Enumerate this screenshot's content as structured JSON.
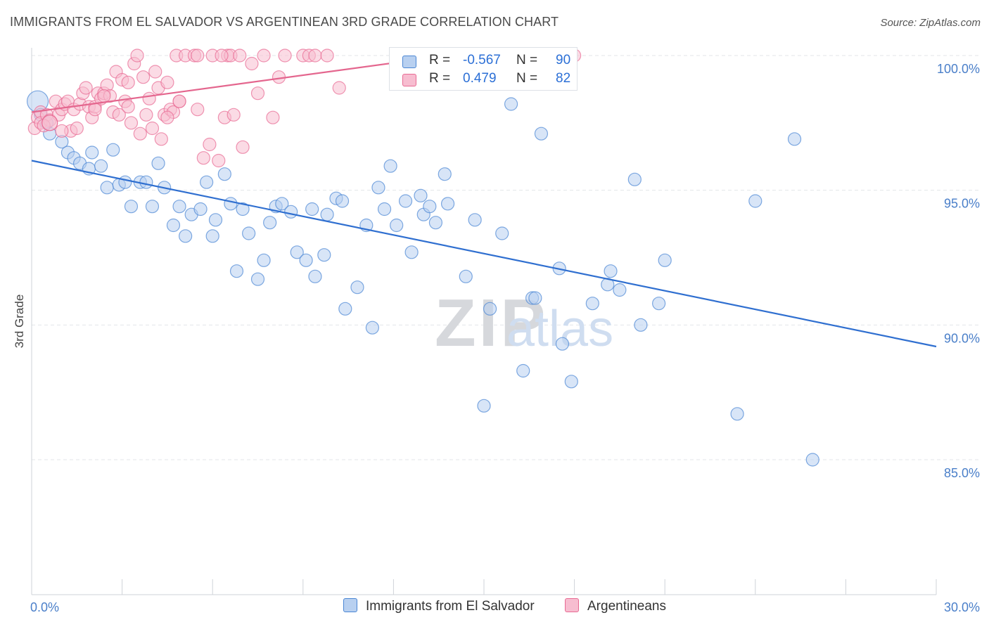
{
  "title": "IMMIGRANTS FROM EL SALVADOR VS ARGENTINEAN 3RD GRADE CORRELATION CHART",
  "source": "Source: ZipAtlas.com",
  "watermark": {
    "zip": "ZIP",
    "atlas": "atlas"
  },
  "colors": {
    "blue": "#4a86d4",
    "blue_fill": "#b8d0f0",
    "blue_line": "#2f6fd0",
    "pink": "#e86a93",
    "pink_fill": "#f7bdd0",
    "pink_line": "#e4668e",
    "tick_text": "#4a7fc9",
    "grid": "#e3e6ea"
  },
  "legend": {
    "rows": [
      {
        "r_label": "R =",
        "r_value": "-0.567",
        "n_label": "N =",
        "n_value": "90"
      },
      {
        "r_label": "R =",
        "r_value": "0.479",
        "n_label": "N =",
        "n_value": "82"
      }
    ]
  },
  "bottom_legend": [
    "Immigrants from El Salvador",
    "Argentineans"
  ],
  "chart_data": {
    "type": "scatter",
    "xlabel": "",
    "ylabel": "3rd Grade",
    "xlim": [
      0,
      30
    ],
    "ylim": [
      80.5,
      100.8
    ],
    "x_tick_labels": [
      "0.0%",
      "30.0%"
    ],
    "y_ticks": [
      85,
      90,
      95,
      100
    ],
    "y_tick_labels": [
      "85.0%",
      "90.0%",
      "95.0%",
      "100.0%"
    ],
    "grid": true,
    "legend_position": "top-center",
    "series": [
      {
        "name": "Immigrants from El Salvador",
        "r": -0.567,
        "n": 90,
        "trend": {
          "x": [
            0,
            30
          ],
          "y": [
            96.1,
            89.2
          ]
        },
        "points": [
          [
            0.2,
            98.3
          ],
          [
            0.3,
            97.8
          ],
          [
            0.5,
            97.5
          ],
          [
            0.6,
            97.1
          ],
          [
            1.0,
            96.8
          ],
          [
            1.2,
            96.4
          ],
          [
            1.4,
            96.2
          ],
          [
            1.6,
            96.0
          ],
          [
            1.9,
            95.8
          ],
          [
            2.0,
            96.4
          ],
          [
            2.3,
            95.9
          ],
          [
            2.5,
            95.1
          ],
          [
            2.7,
            96.5
          ],
          [
            2.9,
            95.2
          ],
          [
            3.1,
            95.3
          ],
          [
            3.3,
            94.4
          ],
          [
            3.6,
            95.3
          ],
          [
            3.8,
            95.3
          ],
          [
            4.0,
            94.4
          ],
          [
            4.2,
            96.0
          ],
          [
            4.4,
            95.1
          ],
          [
            4.7,
            93.7
          ],
          [
            4.9,
            94.4
          ],
          [
            5.1,
            93.3
          ],
          [
            5.3,
            94.1
          ],
          [
            5.6,
            94.3
          ],
          [
            5.8,
            95.3
          ],
          [
            6.0,
            93.3
          ],
          [
            6.1,
            93.9
          ],
          [
            6.4,
            95.6
          ],
          [
            6.6,
            94.5
          ],
          [
            6.8,
            92.0
          ],
          [
            7.0,
            94.3
          ],
          [
            7.2,
            93.4
          ],
          [
            7.5,
            91.7
          ],
          [
            7.7,
            92.4
          ],
          [
            7.9,
            93.8
          ],
          [
            8.1,
            94.4
          ],
          [
            8.3,
            94.5
          ],
          [
            8.6,
            94.2
          ],
          [
            8.8,
            92.7
          ],
          [
            9.1,
            92.4
          ],
          [
            9.3,
            94.3
          ],
          [
            9.4,
            91.8
          ],
          [
            9.7,
            92.6
          ],
          [
            9.8,
            94.1
          ],
          [
            10.1,
            94.7
          ],
          [
            10.3,
            94.6
          ],
          [
            10.4,
            90.6
          ],
          [
            10.8,
            91.4
          ],
          [
            11.1,
            93.7
          ],
          [
            11.3,
            89.9
          ],
          [
            11.5,
            95.1
          ],
          [
            11.7,
            94.3
          ],
          [
            11.9,
            95.9
          ],
          [
            12.1,
            93.7
          ],
          [
            12.4,
            94.6
          ],
          [
            12.6,
            92.7
          ],
          [
            12.9,
            94.8
          ],
          [
            13.0,
            94.1
          ],
          [
            13.2,
            94.4
          ],
          [
            13.4,
            93.8
          ],
          [
            13.7,
            95.6
          ],
          [
            13.8,
            94.5
          ],
          [
            14.4,
            91.8
          ],
          [
            14.7,
            93.9
          ],
          [
            15.0,
            87.0
          ],
          [
            15.2,
            90.6
          ],
          [
            15.6,
            93.4
          ],
          [
            15.9,
            98.2
          ],
          [
            16.3,
            88.3
          ],
          [
            16.6,
            91.0
          ],
          [
            16.7,
            91.0
          ],
          [
            16.9,
            97.1
          ],
          [
            17.5,
            92.1
          ],
          [
            17.6,
            89.3
          ],
          [
            17.9,
            87.9
          ],
          [
            18.6,
            90.8
          ],
          [
            19.1,
            91.5
          ],
          [
            19.2,
            92.0
          ],
          [
            19.5,
            91.3
          ],
          [
            20.0,
            95.4
          ],
          [
            20.2,
            90.0
          ],
          [
            20.8,
            90.8
          ],
          [
            21.0,
            92.4
          ],
          [
            23.4,
            86.7
          ],
          [
            24.0,
            94.6
          ],
          [
            25.3,
            96.9
          ],
          [
            25.9,
            85.0
          ],
          [
            13.4,
            99.8
          ]
        ]
      },
      {
        "name": "Argentineans",
        "r": 0.479,
        "n": 82,
        "trend": {
          "x": [
            0,
            13.8
          ],
          "y": [
            97.9,
            100.0
          ]
        },
        "points": [
          [
            0.1,
            97.3
          ],
          [
            0.2,
            97.7
          ],
          [
            0.3,
            97.9
          ],
          [
            0.3,
            97.5
          ],
          [
            0.5,
            97.8
          ],
          [
            0.6,
            97.6
          ],
          [
            0.8,
            98.3
          ],
          [
            0.9,
            97.8
          ],
          [
            1.0,
            98.0
          ],
          [
            1.1,
            98.2
          ],
          [
            1.2,
            98.3
          ],
          [
            1.3,
            97.2
          ],
          [
            1.4,
            98.0
          ],
          [
            1.5,
            97.3
          ],
          [
            1.6,
            98.2
          ],
          [
            1.7,
            98.6
          ],
          [
            1.8,
            98.8
          ],
          [
            1.9,
            98.1
          ],
          [
            2.0,
            97.7
          ],
          [
            2.1,
            98.1
          ],
          [
            2.2,
            98.6
          ],
          [
            2.3,
            98.4
          ],
          [
            2.4,
            98.6
          ],
          [
            2.5,
            98.9
          ],
          [
            2.6,
            98.5
          ],
          [
            2.7,
            97.9
          ],
          [
            2.8,
            99.4
          ],
          [
            2.9,
            97.8
          ],
          [
            3.0,
            99.1
          ],
          [
            3.1,
            98.3
          ],
          [
            3.2,
            99.0
          ],
          [
            3.3,
            97.5
          ],
          [
            3.4,
            99.7
          ],
          [
            3.5,
            100.0
          ],
          [
            3.6,
            97.1
          ],
          [
            3.7,
            99.2
          ],
          [
            3.8,
            97.8
          ],
          [
            3.9,
            98.4
          ],
          [
            4.0,
            97.3
          ],
          [
            4.1,
            99.4
          ],
          [
            4.2,
            98.8
          ],
          [
            4.3,
            96.9
          ],
          [
            4.4,
            97.8
          ],
          [
            4.5,
            99.0
          ],
          [
            4.6,
            98.0
          ],
          [
            4.7,
            97.9
          ],
          [
            4.8,
            100.0
          ],
          [
            4.9,
            98.3
          ],
          [
            5.1,
            100.0
          ],
          [
            5.4,
            100.0
          ],
          [
            5.5,
            98.0
          ],
          [
            5.7,
            96.2
          ],
          [
            5.9,
            96.7
          ],
          [
            6.0,
            100.0
          ],
          [
            6.2,
            96.1
          ],
          [
            6.4,
            97.7
          ],
          [
            6.5,
            100.0
          ],
          [
            6.6,
            100.0
          ],
          [
            6.7,
            97.8
          ],
          [
            6.9,
            100.0
          ],
          [
            7.0,
            96.6
          ],
          [
            7.3,
            99.7
          ],
          [
            7.5,
            98.6
          ],
          [
            7.7,
            100.0
          ],
          [
            8.0,
            97.7
          ],
          [
            8.2,
            99.2
          ],
          [
            8.4,
            100.0
          ],
          [
            9.0,
            100.0
          ],
          [
            9.2,
            100.0
          ],
          [
            9.4,
            100.0
          ],
          [
            9.8,
            100.0
          ],
          [
            10.2,
            98.8
          ],
          [
            18.0,
            100.0
          ],
          [
            2.1,
            98.0
          ],
          [
            1.0,
            97.2
          ],
          [
            0.4,
            97.4
          ],
          [
            4.9,
            98.3
          ],
          [
            6.3,
            100.0
          ],
          [
            5.5,
            100.0
          ],
          [
            4.5,
            97.7
          ],
          [
            3.2,
            98.1
          ],
          [
            2.4,
            98.5
          ]
        ]
      }
    ]
  }
}
